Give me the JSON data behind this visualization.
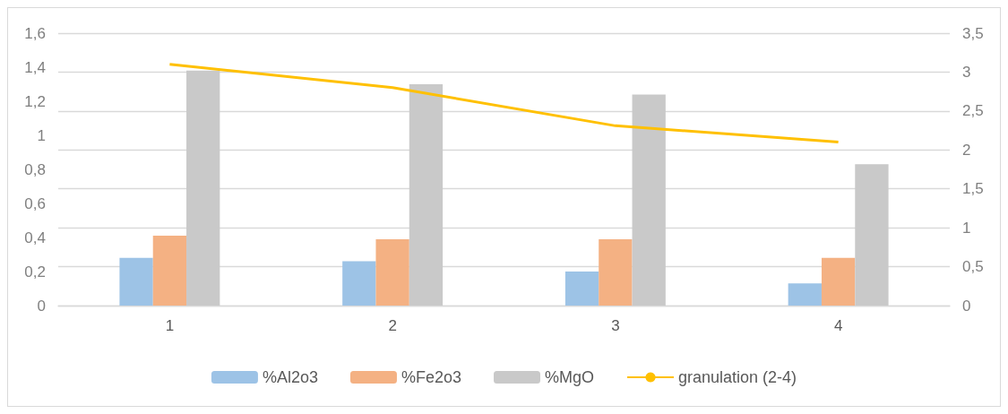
{
  "chart_data": {
    "type": "bar",
    "categories": [
      "1",
      "2",
      "3",
      "4"
    ],
    "series": [
      {
        "name": "%Al2o3",
        "color": "#9dc3e6",
        "values": [
          0.28,
          0.26,
          0.2,
          0.13
        ]
      },
      {
        "name": "%Fe2o3",
        "color": "#f4b183",
        "values": [
          0.41,
          0.39,
          0.39,
          0.28
        ]
      },
      {
        "name": "%MgO",
        "color": "#c9c9c9",
        "values": [
          1.38,
          1.3,
          1.24,
          0.83
        ]
      },
      {
        "name": "granulation (2-4)",
        "type": "line",
        "axis": "y2",
        "color": "#ffc000",
        "values": [
          3.1,
          2.8,
          2.31,
          2.1
        ]
      }
    ],
    "ylim": [
      0,
      1.6
    ],
    "yticks": [
      0,
      {
        "value": 0.2,
        "label": "0,2"
      },
      {
        "value": 0.4,
        "label": "0,4"
      },
      {
        "value": 0.6,
        "label": "0,6"
      },
      {
        "value": 0.8,
        "label": "0,8"
      },
      1,
      {
        "value": 1.2,
        "label": "1,2"
      },
      {
        "value": 1.4,
        "label": "1,4"
      },
      {
        "value": 1.6,
        "label": "1,6"
      }
    ],
    "y2lim": [
      0,
      3.5
    ],
    "y2ticks": [
      0,
      {
        "value": 0.5,
        "label": "0,5"
      },
      1,
      {
        "value": 1.5,
        "label": "1,5"
      },
      2,
      {
        "value": 2.5,
        "label": "2,5"
      },
      3,
      {
        "value": 3.5,
        "label": "3,5"
      }
    ],
    "grid": true,
    "legend": "bottom",
    "marker": "none"
  }
}
